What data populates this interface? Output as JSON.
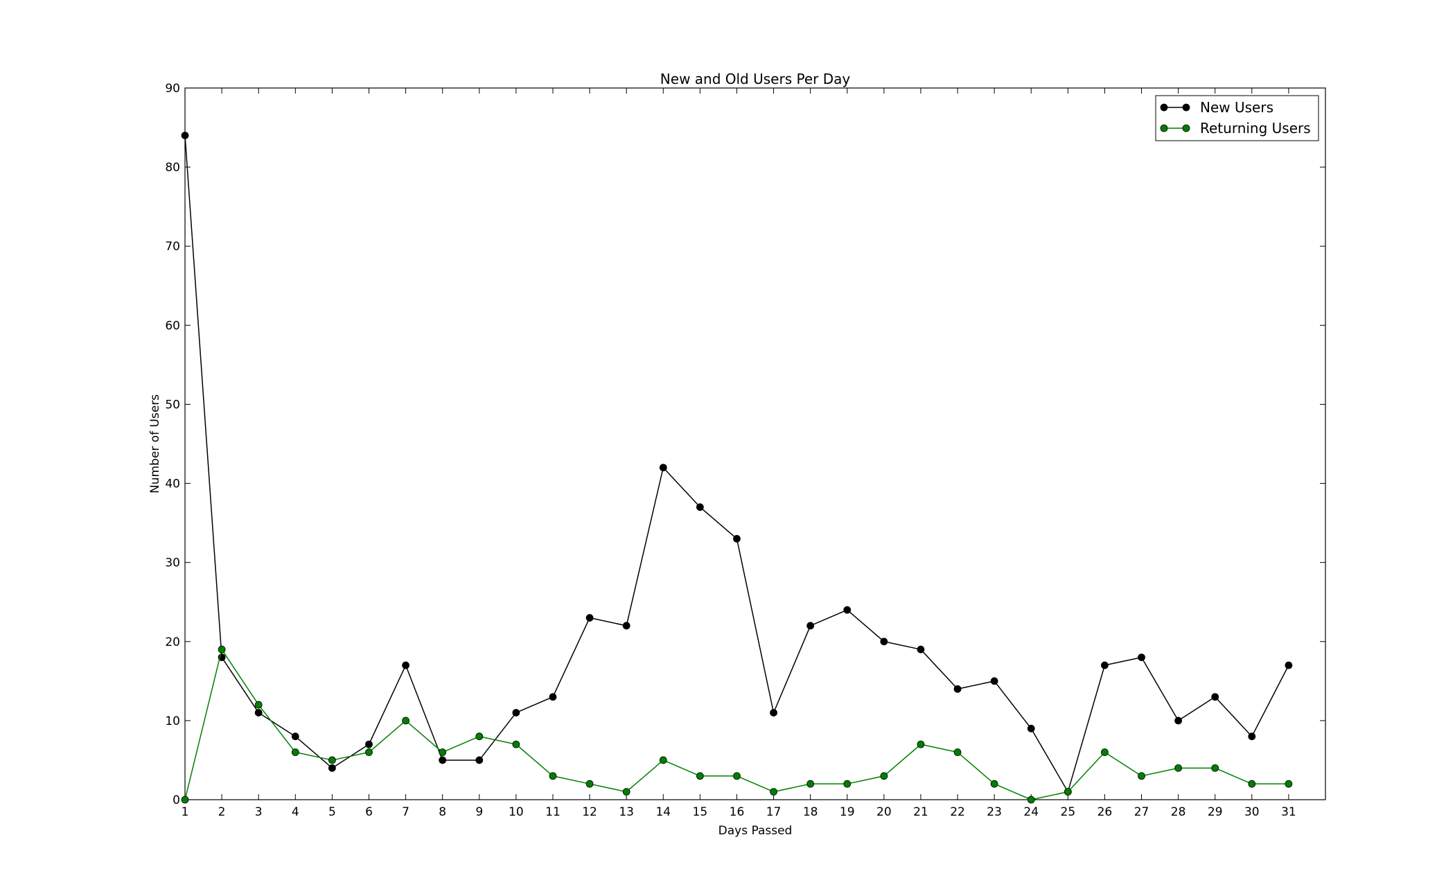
{
  "chart_data": {
    "type": "line",
    "title": "New and Old Users Per Day",
    "xlabel": "Days Passed",
    "ylabel": "Number of Users",
    "xlim": [
      1,
      32
    ],
    "ylim": [
      0,
      90
    ],
    "x": [
      1,
      2,
      3,
      4,
      5,
      6,
      7,
      8,
      9,
      10,
      11,
      12,
      13,
      14,
      15,
      16,
      17,
      18,
      19,
      20,
      21,
      22,
      23,
      24,
      25,
      26,
      27,
      28,
      29,
      30,
      31
    ],
    "x_ticks": [
      1,
      2,
      3,
      4,
      5,
      6,
      7,
      8,
      9,
      10,
      11,
      12,
      13,
      14,
      15,
      16,
      17,
      18,
      19,
      20,
      21,
      22,
      23,
      24,
      25,
      26,
      27,
      28,
      29,
      30,
      31
    ],
    "y_ticks": [
      0,
      10,
      20,
      30,
      40,
      50,
      60,
      70,
      80,
      90
    ],
    "grid": false,
    "legend_position": "top-right",
    "series": [
      {
        "name": "New Users",
        "color": "#000000",
        "marker": "circle",
        "values": [
          84,
          18,
          11,
          8,
          4,
          7,
          17,
          5,
          5,
          11,
          13,
          23,
          22,
          42,
          37,
          33,
          11,
          22,
          24,
          20,
          19,
          14,
          15,
          9,
          1,
          17,
          18,
          10,
          13,
          8,
          17
        ]
      },
      {
        "name": "Returning Users",
        "color": "#007f00",
        "marker": "circle",
        "values": [
          0,
          19,
          12,
          6,
          5,
          6,
          10,
          6,
          8,
          7,
          3,
          2,
          1,
          5,
          3,
          3,
          1,
          2,
          2,
          3,
          7,
          6,
          2,
          0,
          1,
          6,
          3,
          4,
          4,
          2,
          2
        ]
      }
    ]
  }
}
